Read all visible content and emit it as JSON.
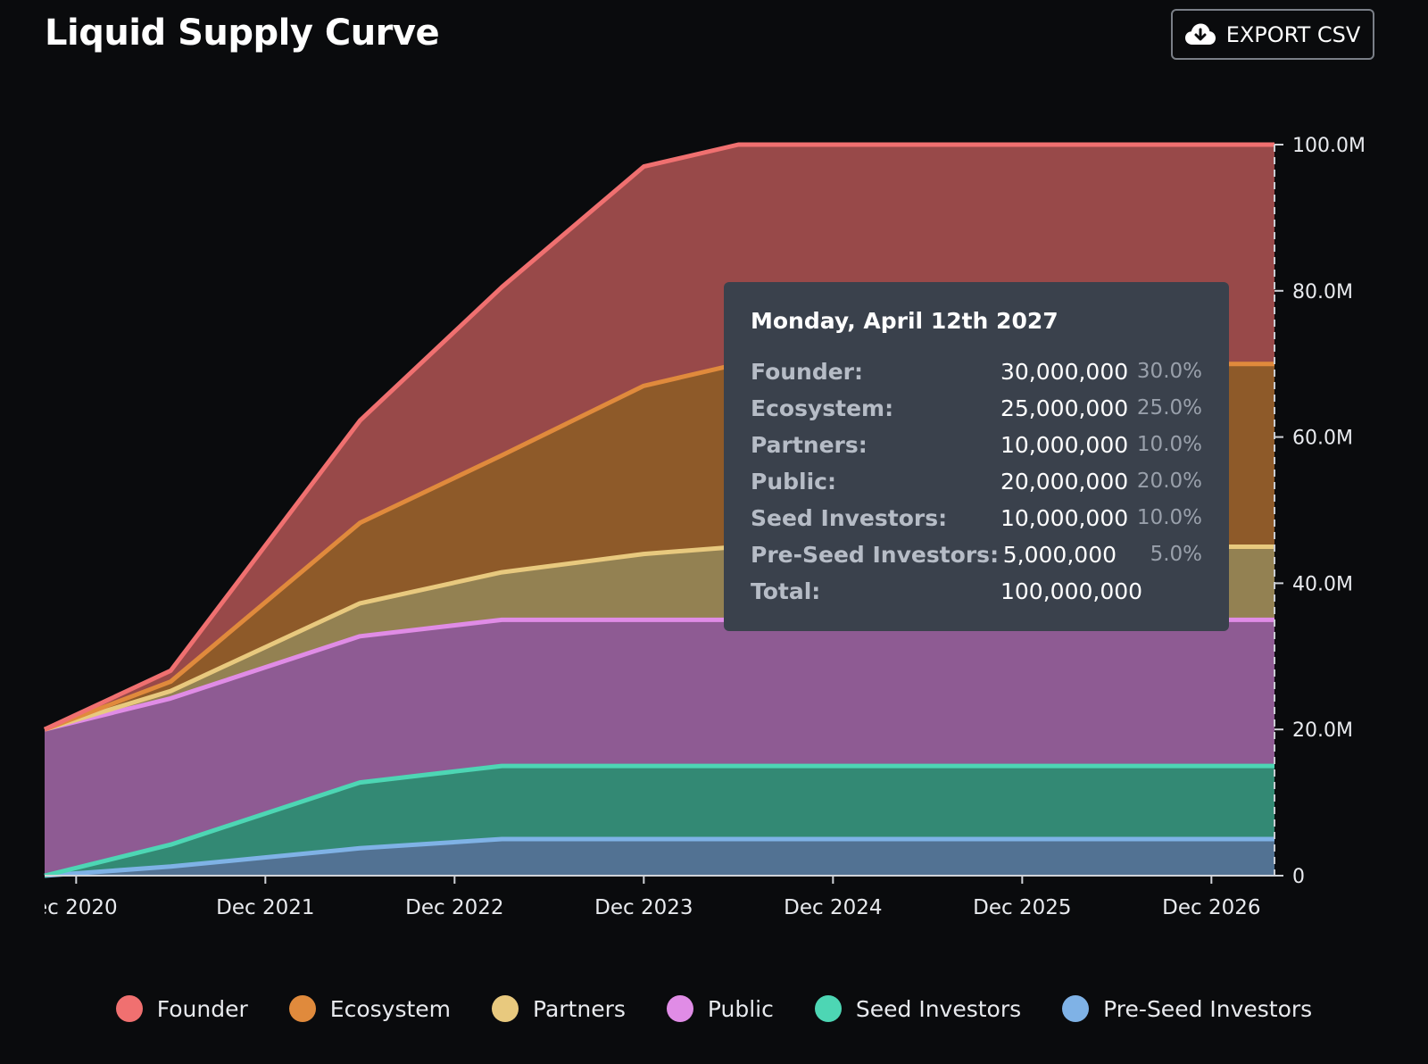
{
  "header": {
    "title": "Liquid Supply Curve",
    "export_label": "EXPORT CSV",
    "export_icon": "cloud-download-icon"
  },
  "tooltip": {
    "date": "Monday, April 12th 2027",
    "rows": [
      {
        "label": "Founder:",
        "value": "30,000,000",
        "pct": "30.0%"
      },
      {
        "label": "Ecosystem:",
        "value": "25,000,000",
        "pct": "25.0%"
      },
      {
        "label": "Partners:",
        "value": "10,000,000",
        "pct": "10.0%"
      },
      {
        "label": "Public:",
        "value": "20,000,000",
        "pct": "20.0%"
      },
      {
        "label": "Seed Investors:",
        "value": "10,000,000",
        "pct": "10.0%"
      },
      {
        "label": "Pre-Seed Investors:",
        "value": "5,000,000",
        "pct": "5.0%"
      },
      {
        "label": "Total:",
        "value": "100,000,000",
        "pct": ""
      }
    ]
  },
  "chart_data": {
    "type": "area",
    "stacked": true,
    "title": "Liquid Supply Curve",
    "xlabel": "",
    "ylabel": "",
    "x_tick_labels": [
      "ec 2020",
      "Dec 2021",
      "Dec 2022",
      "Dec 2023",
      "Dec 2024",
      "Dec 2025",
      "Dec 2026"
    ],
    "x_ticks": [
      "2020-12",
      "2021-12",
      "2022-12",
      "2023-12",
      "2024-12",
      "2025-12",
      "2026-12"
    ],
    "y_tick_labels": [
      "0",
      "20.0M",
      "40.0M",
      "60.0M",
      "80.0M",
      "100.0M"
    ],
    "ylim": [
      0,
      100000000
    ],
    "xlim": [
      "2020-10",
      "2027-04"
    ],
    "grid": false,
    "legend_position": "bottom",
    "x": [
      "2020-10",
      "2021-06",
      "2022-06",
      "2023-03",
      "2023-12",
      "2024-06",
      "2027-04"
    ],
    "series": [
      {
        "name": "Pre-Seed Investors",
        "color": "#7fb2e6",
        "values": [
          0,
          1250000,
          3750000,
          5000000,
          5000000,
          5000000,
          5000000
        ]
      },
      {
        "name": "Seed Investors",
        "color": "#4dd6b4",
        "values": [
          0,
          3000000,
          9000000,
          10000000,
          10000000,
          10000000,
          10000000
        ]
      },
      {
        "name": "Public",
        "color": "#e08ce6",
        "values": [
          20000000,
          20000000,
          20000000,
          20000000,
          20000000,
          20000000,
          20000000
        ]
      },
      {
        "name": "Partners",
        "color": "#e8c97e",
        "values": [
          0,
          1000000,
          4500000,
          6500000,
          9000000,
          10000000,
          10000000
        ]
      },
      {
        "name": "Ecosystem",
        "color": "#e08a3c",
        "values": [
          0,
          1300000,
          11000000,
          16000000,
          23000000,
          25000000,
          25000000
        ]
      },
      {
        "name": "Founder",
        "color": "#f07070",
        "values": [
          0,
          1500000,
          14000000,
          23000000,
          30000000,
          30000000,
          30000000
        ]
      }
    ]
  }
}
